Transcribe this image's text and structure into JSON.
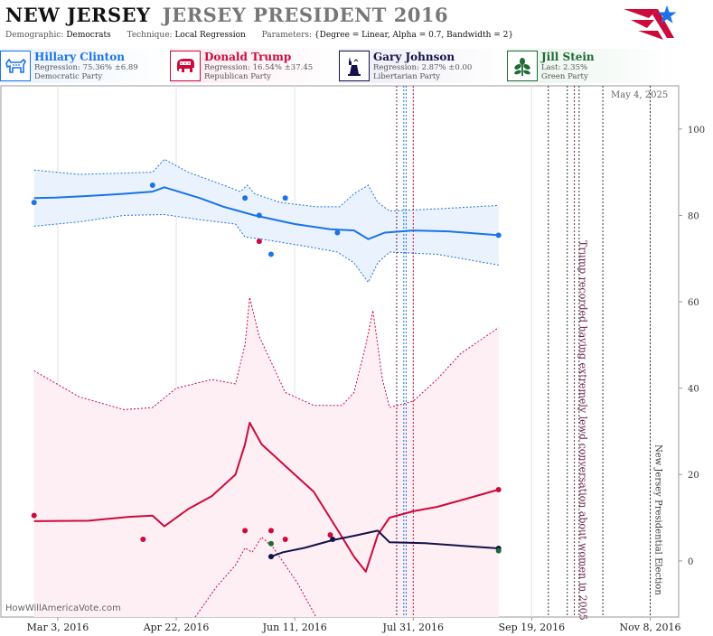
{
  "header": {
    "state": "NEW JERSEY",
    "race": "JERSEY PRESIDENT 2016",
    "demographic_label": "Demographic:",
    "demographic_value": "Democrats",
    "technique_label": "Technique:",
    "technique_value": "Local Regression",
    "parameters_label": "Parameters:",
    "parameters_value": "{Degree = Linear, Alpha = 0.7, Bandwidth = 2}"
  },
  "candidates": [
    {
      "name": "Hillary Clinton",
      "stat": "Regression: 75.36% ±6.89",
      "party": "Democratic Party",
      "color": "#1a73e8",
      "bg": "#eaf2fd",
      "icon": "donkey-icon"
    },
    {
      "name": "Donald Trump",
      "stat": "Regression: 16.54% ±37.45",
      "party": "Republican Party",
      "color": "#cc0a3c",
      "bg": "#fdeaf0",
      "icon": "elephant-icon"
    },
    {
      "name": "Gary Johnson",
      "stat": "Regression: 2.87% ±0.00",
      "party": "Libertarian Party",
      "color": "#14124a",
      "bg": "#ebebf5",
      "icon": "liberty-icon"
    },
    {
      "name": "Jill Stein",
      "stat": "Last: 2.35%",
      "party": "Green Party",
      "color": "#1e6b35",
      "bg": "#e9f4ec",
      "icon": "flower-icon"
    }
  ],
  "watermark": "HowWillAmericaVote.com",
  "datestamp": "May 4, 2025",
  "chart_data": {
    "type": "line",
    "x_axis": {
      "type": "date",
      "range": [
        "2016-02-08",
        "2016-11-20"
      ],
      "ticks": [
        {
          "date": "2016-03-03",
          "label": "Mar 3, 2016"
        },
        {
          "date": "2016-04-22",
          "label": "Apr 22, 2016"
        },
        {
          "date": "2016-06-11",
          "label": "Jun 11, 2016"
        },
        {
          "date": "2016-07-31",
          "label": "Jul 31, 2016"
        },
        {
          "date": "2016-09-19",
          "label": "Sep 19, 2016"
        },
        {
          "date": "2016-11-08",
          "label": "Nov 8, 2016"
        }
      ]
    },
    "y_axis": {
      "range": [
        -13,
        110
      ],
      "ticks": [
        0,
        20,
        40,
        60,
        80,
        100
      ],
      "position": "right"
    },
    "grid": "vertical",
    "series": [
      {
        "name": "Hillary Clinton",
        "color": "#1a73e8",
        "band_fill": "#eaf2fd",
        "points": [
          [
            "2016-02-22",
            83
          ],
          [
            "2016-04-12",
            87
          ],
          [
            "2016-05-21",
            84
          ],
          [
            "2016-05-27",
            80
          ],
          [
            "2016-06-01",
            71
          ],
          [
            "2016-06-07",
            84
          ],
          [
            "2016-06-29",
            76
          ],
          [
            "2016-09-05",
            75.4
          ]
        ],
        "line": [
          [
            "2016-02-22",
            84
          ],
          [
            "2016-03-02",
            84.1
          ],
          [
            "2016-03-16",
            84.5
          ],
          [
            "2016-03-31",
            85
          ],
          [
            "2016-04-12",
            85.5
          ],
          [
            "2016-04-17",
            86.5
          ],
          [
            "2016-05-02",
            84
          ],
          [
            "2016-05-12",
            82
          ],
          [
            "2016-05-25",
            80
          ],
          [
            "2016-06-11",
            78
          ],
          [
            "2016-06-26",
            76.8
          ],
          [
            "2016-07-06",
            76.5
          ],
          [
            "2016-07-12",
            74.5
          ],
          [
            "2016-07-19",
            76
          ],
          [
            "2016-07-31",
            76.5
          ],
          [
            "2016-08-15",
            76.3
          ],
          [
            "2016-09-05",
            75.4
          ]
        ],
        "upper": [
          [
            "2016-02-22",
            90.5
          ],
          [
            "2016-03-12",
            89.5
          ],
          [
            "2016-03-31",
            89.8
          ],
          [
            "2016-04-12",
            90
          ],
          [
            "2016-04-17",
            93
          ],
          [
            "2016-04-27",
            90
          ],
          [
            "2016-05-12",
            87
          ],
          [
            "2016-05-19",
            85.5
          ],
          [
            "2016-05-22",
            87
          ],
          [
            "2016-05-25",
            85
          ],
          [
            "2016-06-05",
            83
          ],
          [
            "2016-06-20",
            82
          ],
          [
            "2016-06-30",
            82
          ],
          [
            "2016-07-06",
            85
          ],
          [
            "2016-07-12",
            87
          ],
          [
            "2016-07-16",
            83
          ],
          [
            "2016-07-21",
            81
          ],
          [
            "2016-08-10",
            81.5
          ],
          [
            "2016-09-05",
            82.3
          ]
        ],
        "lower": [
          [
            "2016-02-22",
            77.5
          ],
          [
            "2016-03-12",
            78.5
          ],
          [
            "2016-03-31",
            80
          ],
          [
            "2016-04-17",
            80.2
          ],
          [
            "2016-05-02",
            79
          ],
          [
            "2016-05-17",
            78
          ],
          [
            "2016-05-21",
            75
          ],
          [
            "2016-05-28",
            74.5
          ],
          [
            "2016-06-14",
            73
          ],
          [
            "2016-06-29",
            71.5
          ],
          [
            "2016-07-06",
            69
          ],
          [
            "2016-07-12",
            64.5
          ],
          [
            "2016-07-16",
            69
          ],
          [
            "2016-07-21",
            71.5
          ],
          [
            "2016-08-10",
            71
          ],
          [
            "2016-09-05",
            68.5
          ]
        ]
      },
      {
        "name": "Donald Trump",
        "color": "#cc0a3c",
        "band_fill": "#fdeff3",
        "points": [
          [
            "2016-02-22",
            10.5
          ],
          [
            "2016-04-08",
            5
          ],
          [
            "2016-05-21",
            7
          ],
          [
            "2016-05-27",
            74
          ],
          [
            "2016-06-01",
            7
          ],
          [
            "2016-06-07",
            5
          ],
          [
            "2016-06-26",
            6
          ],
          [
            "2016-09-05",
            16.5
          ]
        ],
        "line": [
          [
            "2016-02-22",
            9.2
          ],
          [
            "2016-03-16",
            9.3
          ],
          [
            "2016-04-02",
            10.2
          ],
          [
            "2016-04-12",
            10.5
          ],
          [
            "2016-04-17",
            8
          ],
          [
            "2016-04-27",
            12
          ],
          [
            "2016-05-07",
            15
          ],
          [
            "2016-05-17",
            20
          ],
          [
            "2016-05-21",
            27
          ],
          [
            "2016-05-23",
            32
          ],
          [
            "2016-05-28",
            27
          ],
          [
            "2016-06-07",
            22
          ],
          [
            "2016-06-19",
            16
          ],
          [
            "2016-07-01",
            5.5
          ],
          [
            "2016-07-06",
            1
          ],
          [
            "2016-07-11",
            -2.5
          ],
          [
            "2016-07-16",
            6
          ],
          [
            "2016-07-21",
            10
          ],
          [
            "2016-07-31",
            11.5
          ],
          [
            "2016-08-10",
            12.5
          ],
          [
            "2016-08-20",
            14
          ],
          [
            "2016-09-05",
            16.5
          ]
        ],
        "upper": [
          [
            "2016-02-22",
            44
          ],
          [
            "2016-03-12",
            38
          ],
          [
            "2016-03-31",
            35
          ],
          [
            "2016-04-12",
            35.5
          ],
          [
            "2016-04-22",
            40
          ],
          [
            "2016-05-07",
            42
          ],
          [
            "2016-05-17",
            41
          ],
          [
            "2016-05-21",
            50
          ],
          [
            "2016-05-23",
            61
          ],
          [
            "2016-05-27",
            52
          ],
          [
            "2016-06-07",
            39
          ],
          [
            "2016-06-19",
            36
          ],
          [
            "2016-07-01",
            36
          ],
          [
            "2016-07-06",
            39
          ],
          [
            "2016-07-11",
            50
          ],
          [
            "2016-07-14",
            58
          ],
          [
            "2016-07-18",
            42
          ],
          [
            "2016-07-21",
            35.5
          ],
          [
            "2016-07-31",
            37
          ],
          [
            "2016-08-10",
            42
          ],
          [
            "2016-08-20",
            48
          ],
          [
            "2016-09-05",
            54
          ]
        ],
        "lower": [
          [
            "2016-04-30",
            -13
          ],
          [
            "2016-05-09",
            -6
          ],
          [
            "2016-05-17",
            -1
          ],
          [
            "2016-05-21",
            3
          ],
          [
            "2016-05-24",
            2
          ],
          [
            "2016-05-28",
            5.5
          ],
          [
            "2016-06-02",
            3
          ],
          [
            "2016-06-12",
            -5
          ],
          [
            "2016-06-20",
            -13
          ]
        ]
      },
      {
        "name": "Gary Johnson",
        "color": "#14124a",
        "points": [
          [
            "2016-06-01",
            1
          ],
          [
            "2016-06-27",
            5
          ],
          [
            "2016-09-05",
            2.9
          ]
        ],
        "line": [
          [
            "2016-06-01",
            1
          ],
          [
            "2016-06-06",
            2
          ],
          [
            "2016-06-15",
            3
          ],
          [
            "2016-06-27",
            4.8
          ],
          [
            "2016-07-06",
            5.8
          ],
          [
            "2016-07-16",
            7
          ],
          [
            "2016-07-21",
            4.3
          ],
          [
            "2016-08-05",
            4.1
          ],
          [
            "2016-08-20",
            3.5
          ],
          [
            "2016-09-05",
            2.9
          ]
        ]
      },
      {
        "name": "Jill Stein",
        "color": "#1e6b35",
        "points": [
          [
            "2016-06-01",
            4
          ],
          [
            "2016-09-05",
            2.35
          ]
        ]
      }
    ],
    "events": [
      {
        "date": "2016-07-24",
        "color": "#6b1d4f",
        "style": "dotted",
        "label": ""
      },
      {
        "date": "2016-07-27",
        "color": "#1a73e8",
        "style": "dotted",
        "label": ""
      },
      {
        "date": "2016-07-28",
        "color": "#1a73e8",
        "style": "dotted",
        "label": ""
      },
      {
        "date": "2016-07-31",
        "color": "#cc0a3c",
        "style": "dotted",
        "label": ""
      },
      {
        "date": "2016-09-26",
        "color": "#333333",
        "style": "dotted",
        "label": ""
      },
      {
        "date": "2016-10-04",
        "color": "#333333",
        "style": "dotted",
        "label": ""
      },
      {
        "date": "2016-10-07",
        "color": "#6b1d4f",
        "style": "dotted",
        "label": "Trump recorded having extremely lewd conversation about women in 2005"
      },
      {
        "date": "2016-10-09",
        "color": "#333333",
        "style": "dotted",
        "label": ""
      },
      {
        "date": "2016-10-19",
        "color": "#333333",
        "style": "dotted",
        "label": ""
      },
      {
        "date": "2016-11-08",
        "color": "#333333",
        "style": "dotted",
        "label": "New Jersey Presidential Election"
      }
    ]
  }
}
